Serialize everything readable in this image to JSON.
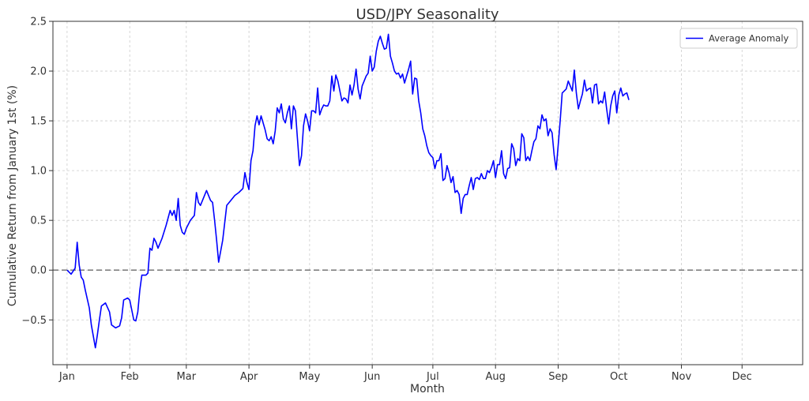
{
  "chart_data": {
    "type": "line",
    "title": "USD/JPY Seasonality",
    "xlabel": "Month",
    "ylabel": "Cumulative Return from January 1st (%)",
    "x_unit": "day of year",
    "xlim": [
      -6,
      365
    ],
    "ylim": [
      -0.95,
      2.5
    ],
    "yticks": [
      -0.5,
      0.0,
      0.5,
      1.0,
      1.5,
      2.0,
      2.5
    ],
    "ytick_labels": [
      "−0.5",
      "0.0",
      "0.5",
      "1.0",
      "1.5",
      "2.0",
      "2.5"
    ],
    "month_ticks": [
      {
        "label": "Jan",
        "day": 1
      },
      {
        "label": "Feb",
        "day": 32
      },
      {
        "label": "Mar",
        "day": 60
      },
      {
        "label": "Apr",
        "day": 91
      },
      {
        "label": "May",
        "day": 121
      },
      {
        "label": "Jun",
        "day": 152
      },
      {
        "label": "Jul",
        "day": 182
      },
      {
        "label": "Aug",
        "day": 213
      },
      {
        "label": "Sep",
        "day": 244
      },
      {
        "label": "Oct",
        "day": 274
      },
      {
        "label": "Nov",
        "day": 305
      },
      {
        "label": "Dec",
        "day": 335
      }
    ],
    "grid": true,
    "legend_position": "top-right",
    "reference_line": {
      "y": 0.0,
      "style": "dashed",
      "color": "#808080"
    },
    "series": [
      {
        "name": "Average Anomaly",
        "color": "#0000ff",
        "points": [
          [
            1,
            0.0
          ],
          [
            3,
            -0.04
          ],
          [
            5,
            0.02
          ],
          [
            6,
            0.28
          ],
          [
            7,
            0.05
          ],
          [
            8,
            -0.07
          ],
          [
            9,
            -0.1
          ],
          [
            10,
            -0.2
          ],
          [
            12,
            -0.38
          ],
          [
            13,
            -0.55
          ],
          [
            15,
            -0.78
          ],
          [
            16,
            -0.65
          ],
          [
            17,
            -0.5
          ],
          [
            18,
            -0.36
          ],
          [
            20,
            -0.33
          ],
          [
            22,
            -0.42
          ],
          [
            23,
            -0.55
          ],
          [
            25,
            -0.58
          ],
          [
            27,
            -0.56
          ],
          [
            28,
            -0.48
          ],
          [
            29,
            -0.3
          ],
          [
            31,
            -0.28
          ],
          [
            32,
            -0.3
          ],
          [
            34,
            -0.5
          ],
          [
            35,
            -0.51
          ],
          [
            36,
            -0.42
          ],
          [
            37,
            -0.2
          ],
          [
            38,
            -0.05
          ],
          [
            40,
            -0.05
          ],
          [
            41,
            -0.03
          ],
          [
            42,
            0.22
          ],
          [
            43,
            0.2
          ],
          [
            44,
            0.32
          ],
          [
            45,
            0.28
          ],
          [
            46,
            0.22
          ],
          [
            48,
            0.32
          ],
          [
            50,
            0.45
          ],
          [
            52,
            0.6
          ],
          [
            53,
            0.55
          ],
          [
            54,
            0.6
          ],
          [
            55,
            0.5
          ],
          [
            56,
            0.72
          ],
          [
            57,
            0.45
          ],
          [
            58,
            0.38
          ],
          [
            59,
            0.36
          ],
          [
            60,
            0.42
          ],
          [
            62,
            0.5
          ],
          [
            64,
            0.55
          ],
          [
            65,
            0.78
          ],
          [
            66,
            0.68
          ],
          [
            67,
            0.65
          ],
          [
            68,
            0.7
          ],
          [
            69,
            0.75
          ],
          [
            70,
            0.8
          ],
          [
            72,
            0.7
          ],
          [
            73,
            0.68
          ],
          [
            74,
            0.5
          ],
          [
            75,
            0.3
          ],
          [
            76,
            0.08
          ],
          [
            78,
            0.3
          ],
          [
            80,
            0.65
          ],
          [
            82,
            0.7
          ],
          [
            84,
            0.75
          ],
          [
            86,
            0.78
          ],
          [
            88,
            0.82
          ],
          [
            89,
            0.98
          ],
          [
            90,
            0.88
          ],
          [
            91,
            0.81
          ],
          [
            92,
            1.1
          ],
          [
            93,
            1.2
          ],
          [
            94,
            1.45
          ],
          [
            95,
            1.55
          ],
          [
            96,
            1.46
          ],
          [
            97,
            1.55
          ],
          [
            98,
            1.48
          ],
          [
            99,
            1.41
          ],
          [
            100,
            1.32
          ],
          [
            101,
            1.3
          ],
          [
            102,
            1.34
          ],
          [
            103,
            1.27
          ],
          [
            104,
            1.4
          ],
          [
            105,
            1.63
          ],
          [
            106,
            1.58
          ],
          [
            107,
            1.67
          ],
          [
            108,
            1.52
          ],
          [
            109,
            1.48
          ],
          [
            110,
            1.58
          ],
          [
            111,
            1.65
          ],
          [
            112,
            1.42
          ],
          [
            113,
            1.65
          ],
          [
            114,
            1.6
          ],
          [
            115,
            1.32
          ],
          [
            116,
            1.05
          ],
          [
            117,
            1.15
          ],
          [
            118,
            1.45
          ],
          [
            119,
            1.57
          ],
          [
            120,
            1.5
          ],
          [
            121,
            1.4
          ],
          [
            122,
            1.6
          ],
          [
            123,
            1.6
          ],
          [
            124,
            1.58
          ],
          [
            125,
            1.83
          ],
          [
            126,
            1.56
          ],
          [
            127,
            1.62
          ],
          [
            128,
            1.66
          ],
          [
            129,
            1.65
          ],
          [
            130,
            1.65
          ],
          [
            131,
            1.7
          ],
          [
            132,
            1.95
          ],
          [
            133,
            1.8
          ],
          [
            134,
            1.96
          ],
          [
            135,
            1.9
          ],
          [
            136,
            1.8
          ],
          [
            137,
            1.7
          ],
          [
            138,
            1.73
          ],
          [
            139,
            1.72
          ],
          [
            140,
            1.68
          ],
          [
            141,
            1.86
          ],
          [
            142,
            1.76
          ],
          [
            143,
            1.86
          ],
          [
            144,
            2.02
          ],
          [
            145,
            1.82
          ],
          [
            146,
            1.72
          ],
          [
            147,
            1.85
          ],
          [
            148,
            1.9
          ],
          [
            149,
            1.95
          ],
          [
            150,
            1.98
          ],
          [
            151,
            2.15
          ],
          [
            152,
            2.0
          ],
          [
            153,
            2.04
          ],
          [
            154,
            2.2
          ],
          [
            155,
            2.3
          ],
          [
            156,
            2.35
          ],
          [
            157,
            2.28
          ],
          [
            158,
            2.22
          ],
          [
            159,
            2.23
          ],
          [
            160,
            2.37
          ],
          [
            161,
            2.15
          ],
          [
            162,
            2.08
          ],
          [
            163,
            2.0
          ],
          [
            164,
            1.97
          ],
          [
            165,
            1.98
          ],
          [
            166,
            1.93
          ],
          [
            167,
            1.97
          ],
          [
            168,
            1.88
          ],
          [
            169,
            1.95
          ],
          [
            170,
            2.02
          ],
          [
            171,
            2.1
          ],
          [
            172,
            1.77
          ],
          [
            173,
            1.93
          ],
          [
            174,
            1.92
          ],
          [
            175,
            1.7
          ],
          [
            176,
            1.58
          ],
          [
            177,
            1.42
          ],
          [
            178,
            1.35
          ],
          [
            179,
            1.25
          ],
          [
            180,
            1.18
          ],
          [
            181,
            1.15
          ],
          [
            182,
            1.13
          ],
          [
            183,
            1.02
          ],
          [
            184,
            1.1
          ],
          [
            185,
            1.1
          ],
          [
            186,
            1.17
          ],
          [
            187,
            0.9
          ],
          [
            188,
            0.92
          ],
          [
            189,
            1.05
          ],
          [
            190,
            0.98
          ],
          [
            191,
            0.88
          ],
          [
            192,
            0.94
          ],
          [
            193,
            0.78
          ],
          [
            194,
            0.8
          ],
          [
            195,
            0.76
          ],
          [
            196,
            0.57
          ],
          [
            197,
            0.72
          ],
          [
            198,
            0.76
          ],
          [
            199,
            0.76
          ],
          [
            200,
            0.85
          ],
          [
            201,
            0.93
          ],
          [
            202,
            0.81
          ],
          [
            203,
            0.92
          ],
          [
            204,
            0.93
          ],
          [
            205,
            0.91
          ],
          [
            206,
            0.97
          ],
          [
            207,
            0.92
          ],
          [
            208,
            0.92
          ],
          [
            209,
            1.0
          ],
          [
            210,
            0.98
          ],
          [
            211,
            1.03
          ],
          [
            212,
            1.1
          ],
          [
            213,
            0.93
          ],
          [
            214,
            1.06
          ],
          [
            215,
            1.06
          ],
          [
            216,
            1.2
          ],
          [
            217,
            0.97
          ],
          [
            218,
            0.92
          ],
          [
            219,
            1.02
          ],
          [
            220,
            1.03
          ],
          [
            221,
            1.27
          ],
          [
            222,
            1.22
          ],
          [
            223,
            1.05
          ],
          [
            224,
            1.12
          ],
          [
            225,
            1.1
          ],
          [
            226,
            1.37
          ],
          [
            227,
            1.33
          ],
          [
            228,
            1.1
          ],
          [
            229,
            1.14
          ],
          [
            230,
            1.1
          ],
          [
            231,
            1.2
          ],
          [
            232,
            1.29
          ],
          [
            233,
            1.32
          ],
          [
            234,
            1.45
          ],
          [
            235,
            1.42
          ],
          [
            236,
            1.56
          ],
          [
            237,
            1.5
          ],
          [
            238,
            1.52
          ],
          [
            239,
            1.35
          ],
          [
            240,
            1.42
          ],
          [
            241,
            1.38
          ],
          [
            242,
            1.16
          ],
          [
            243,
            1.01
          ],
          [
            244,
            1.25
          ],
          [
            245,
            1.5
          ],
          [
            246,
            1.78
          ],
          [
            247,
            1.8
          ],
          [
            248,
            1.82
          ],
          [
            249,
            1.9
          ],
          [
            250,
            1.85
          ],
          [
            251,
            1.8
          ],
          [
            252,
            2.01
          ],
          [
            253,
            1.78
          ],
          [
            254,
            1.62
          ],
          [
            255,
            1.7
          ],
          [
            256,
            1.77
          ],
          [
            257,
            1.91
          ],
          [
            258,
            1.8
          ],
          [
            259,
            1.82
          ],
          [
            260,
            1.83
          ],
          [
            261,
            1.68
          ],
          [
            262,
            1.86
          ],
          [
            263,
            1.87
          ],
          [
            264,
            1.67
          ],
          [
            265,
            1.7
          ],
          [
            266,
            1.68
          ],
          [
            267,
            1.79
          ],
          [
            268,
            1.62
          ],
          [
            269,
            1.47
          ],
          [
            270,
            1.65
          ],
          [
            271,
            1.75
          ],
          [
            272,
            1.8
          ],
          [
            273,
            1.58
          ],
          [
            274,
            1.76
          ],
          [
            275,
            1.83
          ],
          [
            276,
            1.75
          ],
          [
            277,
            1.77
          ],
          [
            278,
            1.78
          ],
          [
            279,
            1.71
          ]
        ]
      }
    ]
  }
}
